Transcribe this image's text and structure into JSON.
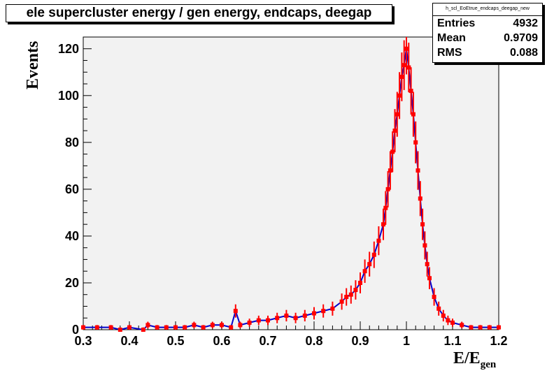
{
  "title": "ele supercluster energy / gen energy, endcaps, deegap",
  "stats": {
    "name": "h_scl_EoEtrue_endcaps_deegap_new",
    "rows": [
      {
        "label": "Entries",
        "value": "4932"
      },
      {
        "label": "Mean",
        "value": "0.9709"
      },
      {
        "label": "RMS",
        "value": "0.088"
      }
    ]
  },
  "colors": {
    "frame_bg": "#f2f2f2",
    "hist": "#0000cc",
    "points": "#ff0000"
  },
  "chart_data": {
    "type": "scatter",
    "xlabel_main": "E/E",
    "xlabel_sub": "gen",
    "ylabel": "Events",
    "xlim": [
      0.3,
      1.2
    ],
    "ylim": [
      0,
      125
    ],
    "x_ticks": [
      0.3,
      0.4,
      0.5,
      0.6,
      0.7,
      0.8,
      0.9,
      1,
      1.1,
      1.2
    ],
    "x_tick_labels": [
      "0.3",
      "0.4",
      "0.5",
      "0.6",
      "0.7",
      "0.8",
      "0.9",
      "1",
      "1.1",
      "1.2"
    ],
    "y_ticks": [
      0,
      20,
      40,
      60,
      80,
      100,
      120
    ],
    "y_tick_labels": [
      "0",
      "20",
      "40",
      "60",
      "80",
      "100",
      "120"
    ],
    "series": [
      {
        "style": "red points with error bars",
        "x": [
          0.3,
          0.33,
          0.36,
          0.38,
          0.4,
          0.43,
          0.44,
          0.46,
          0.48,
          0.5,
          0.52,
          0.54,
          0.56,
          0.58,
          0.6,
          0.62,
          0.63,
          0.64,
          0.66,
          0.68,
          0.7,
          0.72,
          0.74,
          0.76,
          0.78,
          0.8,
          0.82,
          0.84,
          0.86,
          0.87,
          0.88,
          0.89,
          0.9,
          0.91,
          0.92,
          0.93,
          0.94,
          0.95,
          0.955,
          0.96,
          0.965,
          0.97,
          0.975,
          0.98,
          0.985,
          0.99,
          0.995,
          1.0,
          1.005,
          1.01,
          1.015,
          1.02,
          1.025,
          1.03,
          1.035,
          1.04,
          1.045,
          1.05,
          1.06,
          1.07,
          1.08,
          1.09,
          1.1,
          1.12,
          1.14,
          1.16,
          1.18,
          1.2
        ],
        "y": [
          1,
          1,
          1,
          0,
          1,
          0,
          2,
          1,
          1,
          1,
          1,
          2,
          1,
          2,
          2,
          1,
          8,
          2,
          3,
          4,
          4,
          5,
          6,
          5,
          6,
          7,
          8,
          9,
          12,
          14,
          15,
          17,
          20,
          25,
          28,
          32,
          38,
          45,
          52,
          60,
          68,
          76,
          85,
          92,
          100,
          108,
          113,
          120,
          112,
          102,
          92,
          80,
          68,
          56,
          45,
          36,
          28,
          22,
          14,
          9,
          6,
          4,
          3,
          2,
          1,
          1,
          1,
          1
        ]
      }
    ]
  }
}
